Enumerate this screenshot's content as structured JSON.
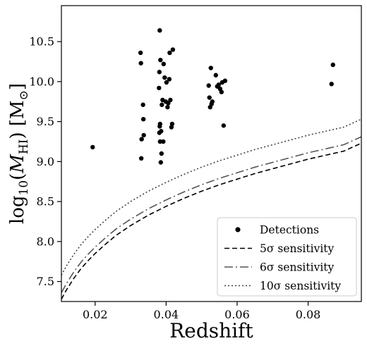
{
  "chart_data": {
    "type": "scatter",
    "xlabel": "Redshift",
    "ylabel": "log10(M_HI) [M_sun]",
    "ylabel_parts": {
      "prefix": "log",
      "sub": "10",
      "open": "(",
      "var": "M",
      "var_sub": "HI",
      "close": ") [M",
      "unit_sub": "⊙",
      "end": "]"
    },
    "xlim": [
      0.0105,
      0.095
    ],
    "ylim": [
      7.25,
      10.95
    ],
    "xticks": [
      0.02,
      0.04,
      0.06,
      0.08
    ],
    "xtick_labels": [
      "0.02",
      "0.04",
      "0.06",
      "0.08"
    ],
    "yticks": [
      7.5,
      8.0,
      8.5,
      9.0,
      9.5,
      10.0,
      10.5
    ],
    "ytick_labels": [
      "7.5",
      "8.0",
      "8.5",
      "9.0",
      "9.5",
      "10.0",
      "10.5"
    ],
    "grid": false,
    "legend_position": "bottom-right",
    "series": [
      {
        "name": "Detections",
        "kind": "points",
        "color": "#000000",
        "points": [
          [
            0.0193,
            9.18
          ],
          [
            0.0328,
            10.36
          ],
          [
            0.0329,
            10.23
          ],
          [
            0.033,
            9.04
          ],
          [
            0.0331,
            9.28
          ],
          [
            0.0335,
            9.71
          ],
          [
            0.0336,
            9.53
          ],
          [
            0.0337,
            9.33
          ],
          [
            0.0382,
            10.64
          ],
          [
            0.0381,
            10.12
          ],
          [
            0.038,
            9.92
          ],
          [
            0.0384,
            10.27
          ],
          [
            0.0383,
            9.47
          ],
          [
            0.0382,
            9.44
          ],
          [
            0.0381,
            9.36
          ],
          [
            0.0383,
            9.25
          ],
          [
            0.0385,
            8.99
          ],
          [
            0.0386,
            9.38
          ],
          [
            0.0387,
            9.1
          ],
          [
            0.0388,
            9.71
          ],
          [
            0.0392,
            9.25
          ],
          [
            0.039,
            9.77
          ],
          [
            0.0393,
            10.22
          ],
          [
            0.0396,
            10.05
          ],
          [
            0.0399,
            9.75
          ],
          [
            0.0401,
            9.99
          ],
          [
            0.0404,
            9.68
          ],
          [
            0.0406,
            9.73
          ],
          [
            0.041,
            10.36
          ],
          [
            0.0409,
            10.03
          ],
          [
            0.0412,
            9.77
          ],
          [
            0.0415,
            9.43
          ],
          [
            0.0417,
            9.47
          ],
          [
            0.0419,
            10.4
          ],
          [
            0.052,
            9.95
          ],
          [
            0.0522,
            9.8
          ],
          [
            0.0524,
            9.68
          ],
          [
            0.0526,
            10.17
          ],
          [
            0.0528,
            9.72
          ],
          [
            0.053,
            9.75
          ],
          [
            0.054,
            10.08
          ],
          [
            0.0544,
            9.94
          ],
          [
            0.0548,
            9.96
          ],
          [
            0.0552,
            9.91
          ],
          [
            0.0556,
            9.87
          ],
          [
            0.0558,
            9.99
          ],
          [
            0.0562,
            9.45
          ],
          [
            0.0566,
            10.01
          ],
          [
            0.0866,
            9.97
          ],
          [
            0.087,
            10.21
          ]
        ]
      },
      {
        "name": "5σ sensitivity",
        "kind": "curve",
        "dash": "7,4",
        "color": "#000000",
        "x": [
          0.0105,
          0.012,
          0.014,
          0.016,
          0.018,
          0.02,
          0.023,
          0.026,
          0.03,
          0.035,
          0.04,
          0.045,
          0.05,
          0.055,
          0.06,
          0.065,
          0.07,
          0.075,
          0.08,
          0.085,
          0.09,
          0.095
        ],
        "y": [
          7.28,
          7.4,
          7.54,
          7.66,
          7.76,
          7.85,
          7.97,
          8.08,
          8.2,
          8.33,
          8.44,
          8.54,
          8.63,
          8.71,
          8.78,
          8.85,
          8.91,
          8.97,
          9.03,
          9.08,
          9.13,
          9.23
        ]
      },
      {
        "name": "6σ sensitivity",
        "kind": "curve",
        "dash": "12,4,2,4",
        "color": "#555555",
        "x": [
          0.0105,
          0.012,
          0.014,
          0.016,
          0.018,
          0.02,
          0.023,
          0.026,
          0.03,
          0.035,
          0.04,
          0.045,
          0.05,
          0.055,
          0.06,
          0.065,
          0.07,
          0.075,
          0.08,
          0.085,
          0.09,
          0.095
        ],
        "y": [
          7.36,
          7.48,
          7.62,
          7.74,
          7.84,
          7.93,
          8.05,
          8.16,
          8.28,
          8.41,
          8.52,
          8.62,
          8.71,
          8.79,
          8.86,
          8.93,
          8.99,
          9.05,
          9.11,
          9.16,
          9.21,
          9.31
        ]
      },
      {
        "name": "10σ sensitivity",
        "kind": "curve",
        "dash": "2,3",
        "color": "#444444",
        "x": [
          0.0105,
          0.012,
          0.014,
          0.016,
          0.018,
          0.02,
          0.023,
          0.026,
          0.03,
          0.035,
          0.04,
          0.045,
          0.05,
          0.055,
          0.06,
          0.065,
          0.07,
          0.075,
          0.08,
          0.085,
          0.09,
          0.095
        ],
        "y": [
          7.58,
          7.7,
          7.84,
          7.96,
          8.06,
          8.15,
          8.27,
          8.38,
          8.5,
          8.63,
          8.74,
          8.84,
          8.93,
          9.01,
          9.08,
          9.15,
          9.21,
          9.27,
          9.33,
          9.38,
          9.43,
          9.53
        ]
      }
    ],
    "legend": [
      {
        "label": "Detections",
        "symbol": "dot"
      },
      {
        "label": "5σ sensitivity",
        "symbol": "line",
        "series": 1
      },
      {
        "label": "6σ sensitivity",
        "symbol": "line",
        "series": 2
      },
      {
        "label": "10σ sensitivity",
        "symbol": "line",
        "series": 3
      }
    ]
  }
}
